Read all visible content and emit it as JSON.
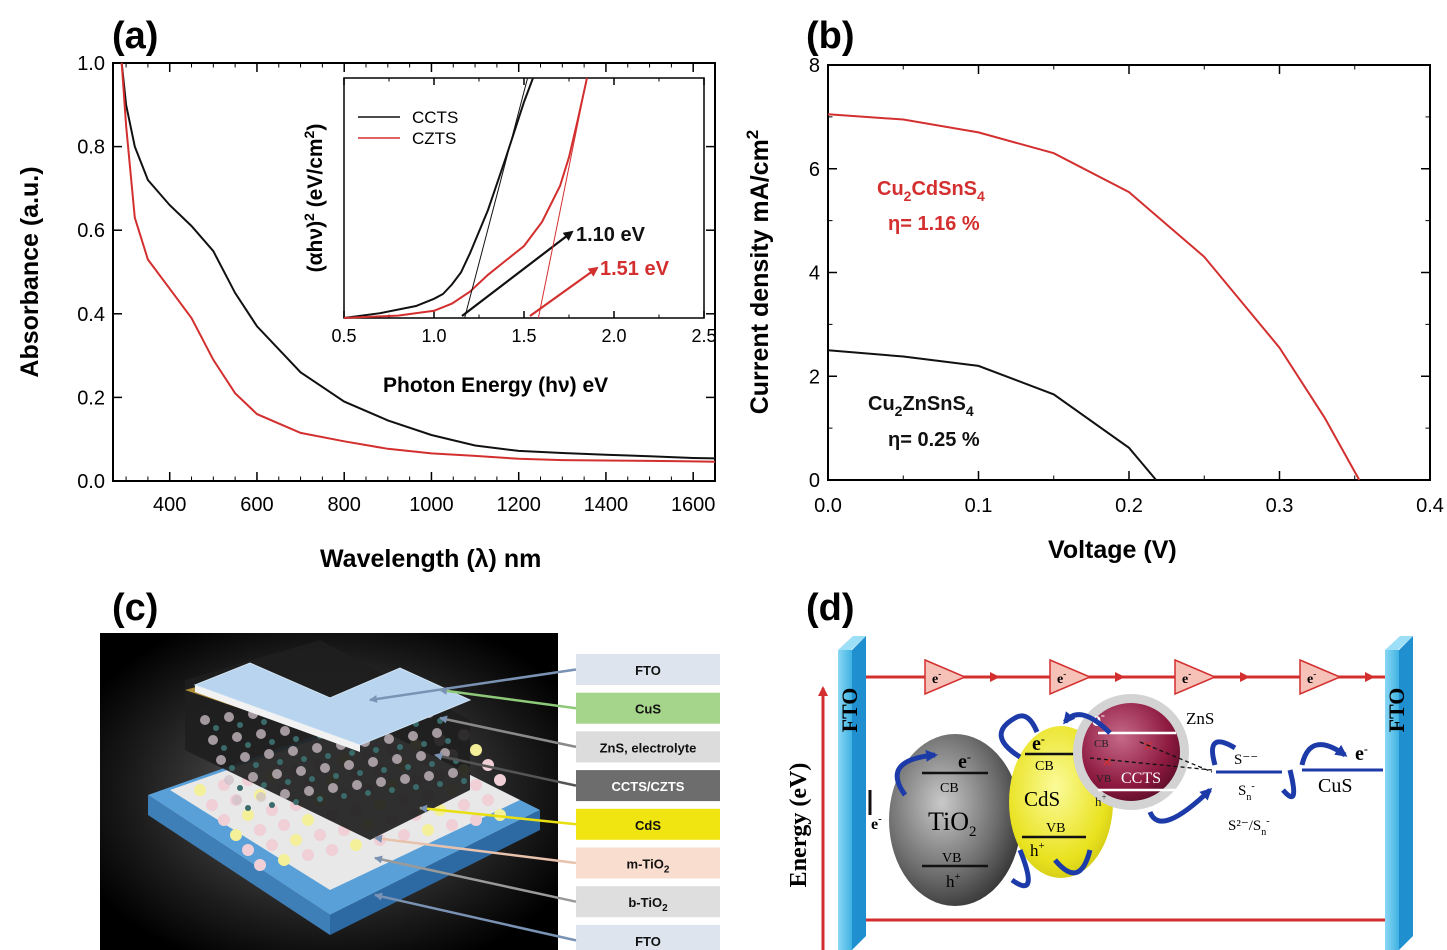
{
  "panel_labels": [
    "(a)",
    "(b)",
    "(c)",
    "(d)"
  ],
  "colors": {
    "red": "#d32f2f",
    "black": "#111111",
    "blue": "#1c3aa8",
    "fto_blue": "#57c1ea"
  },
  "chart_data": [
    {
      "panel": "(a)",
      "type": "line",
      "xlabel": "Wavelength (λ) nm",
      "ylabel": "Absorbance (a.u.)",
      "xlim": [
        270,
        1650
      ],
      "ylim": [
        0,
        1.0
      ],
      "xticks": [
        "400",
        "600",
        "800",
        "1000",
        "1200",
        "1400",
        "1600"
      ],
      "yticks": [
        "0.0",
        "0.2",
        "0.4",
        "0.6",
        "0.8",
        "1.0"
      ],
      "series": [
        {
          "name": "CCTS",
          "color": "#111111",
          "x": [
            290,
            300,
            320,
            350,
            400,
            450,
            500,
            550,
            600,
            700,
            800,
            900,
            1000,
            1100,
            1200,
            1300,
            1400,
            1500,
            1600,
            1650
          ],
          "y": [
            1.0,
            0.9,
            0.8,
            0.72,
            0.66,
            0.61,
            0.55,
            0.45,
            0.37,
            0.26,
            0.19,
            0.145,
            0.11,
            0.085,
            0.072,
            0.067,
            0.063,
            0.059,
            0.055,
            0.054
          ]
        },
        {
          "name": "CZTS",
          "color": "#d32f2f",
          "x": [
            290,
            300,
            320,
            350,
            400,
            450,
            500,
            550,
            600,
            700,
            800,
            900,
            1000,
            1100,
            1200,
            1300,
            1400,
            1500,
            1600,
            1650
          ],
          "y": [
            1.0,
            0.85,
            0.63,
            0.53,
            0.46,
            0.39,
            0.29,
            0.21,
            0.16,
            0.115,
            0.095,
            0.077,
            0.066,
            0.06,
            0.053,
            0.05,
            0.049,
            0.048,
            0.047,
            0.046
          ]
        }
      ],
      "inset": {
        "type": "line",
        "xlabel": "Photon Energy (hν) eV",
        "ylabel": "(αhν)² (eV/cm²)",
        "xlim": [
          0.5,
          2.5
        ],
        "ylim": [
          0,
          1.0
        ],
        "xticks": [
          "0.5",
          "1.0",
          "1.5",
          "2.0",
          "2.5"
        ],
        "legend": [
          "CCTS",
          "CZTS"
        ],
        "legend_position": "top-left",
        "series": [
          {
            "name": "CCTS",
            "color": "#111111",
            "x": [
              0.5,
              0.7,
              0.9,
              1.0,
              1.05,
              1.1,
              1.15,
              1.2,
              1.3,
              1.4,
              1.5,
              1.55
            ],
            "y": [
              0.0,
              0.02,
              0.05,
              0.08,
              0.1,
              0.14,
              0.19,
              0.27,
              0.45,
              0.67,
              0.9,
              1.0
            ]
          },
          {
            "name": "CZTS",
            "color": "#d32f2f",
            "x": [
              0.5,
              0.8,
              1.0,
              1.1,
              1.2,
              1.3,
              1.4,
              1.5,
              1.6,
              1.7,
              1.75,
              1.8,
              1.85
            ],
            "y": [
              0.0,
              0.01,
              0.03,
              0.06,
              0.11,
              0.18,
              0.24,
              0.3,
              0.4,
              0.55,
              0.67,
              0.83,
              1.0
            ]
          }
        ],
        "tangent_lines": [
          {
            "color": "#111111",
            "x": [
              1.17,
              1.52
            ],
            "y": [
              0.0,
              1.0
            ]
          },
          {
            "color": "#d32f2f",
            "x": [
              1.58,
              1.85
            ],
            "y": [
              0.0,
              1.0
            ]
          }
        ],
        "annotations": [
          {
            "text": "1.10 eV",
            "color": "#111111"
          },
          {
            "text": "1.51 eV",
            "color": "#d32f2f"
          }
        ]
      }
    },
    {
      "panel": "(b)",
      "type": "line",
      "xlabel": "Voltage (V)",
      "ylabel": "Current density mA/cm²",
      "xlim": [
        0.0,
        0.4
      ],
      "ylim": [
        0,
        8
      ],
      "xticks": [
        "0.0",
        "0.1",
        "0.2",
        "0.3",
        "0.4"
      ],
      "yticks": [
        "0",
        "2",
        "4",
        "6",
        "8"
      ],
      "series": [
        {
          "name": "Cu₂CdSnS₄",
          "color": "#d32f2f",
          "x": [
            0.0,
            0.05,
            0.1,
            0.15,
            0.2,
            0.25,
            0.3,
            0.33,
            0.353
          ],
          "y": [
            7.05,
            6.95,
            6.7,
            6.3,
            5.55,
            4.3,
            2.55,
            1.2,
            0.0
          ]
        },
        {
          "name": "Cu₂ZnSnS₄",
          "color": "#111111",
          "x": [
            0.0,
            0.05,
            0.1,
            0.15,
            0.2,
            0.218
          ],
          "y": [
            2.5,
            2.38,
            2.2,
            1.65,
            0.62,
            0.0
          ]
        }
      ],
      "annotations": [
        {
          "formula": [
            "Cu",
            "2",
            "CdSnS",
            "4"
          ],
          "efficiency": "η= 1.16 %",
          "color": "#d32f2f"
        },
        {
          "formula": [
            "Cu",
            "2",
            "ZnSnS",
            "4"
          ],
          "efficiency": "η= 0.25 %",
          "color": "#111111"
        }
      ]
    }
  ],
  "panel_c": {
    "layers": [
      "FTO",
      "CuS",
      "ZnS, electrolyte",
      "CCTS/CZTS",
      "CdS",
      "m-TiO",
      "b-TiO",
      "FTO"
    ],
    "layer_colors": [
      "#dde4ee",
      "#a5d48b",
      "#dcdcdc",
      "#6d6d6d",
      "#f0e411",
      "#f9ded0",
      "#dedede",
      "#dde4ee"
    ],
    "subscript": "2"
  },
  "panel_d": {
    "y_axis_label": "Energy (eV)",
    "fto_left": "FTO",
    "fto_right": "FTO",
    "electron": "e",
    "hole": "h",
    "cb": "CB",
    "vb": "VB",
    "tio2": [
      "TiO",
      "2"
    ],
    "cds": "CdS",
    "ccts": "CCTS",
    "zns": "ZnS",
    "cus": "CuS",
    "redox": "S²⁻/S",
    "redox_sub": "n",
    "s_minus": "S⁻⁻",
    "s_n": "S",
    "s_n_sub": "n"
  }
}
